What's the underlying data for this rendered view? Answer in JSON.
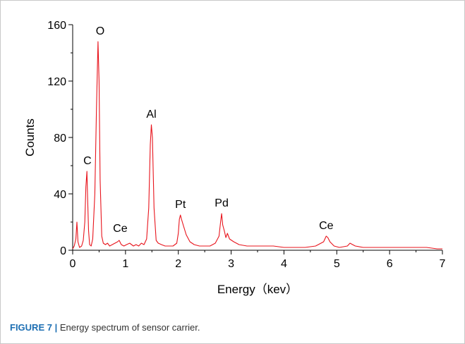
{
  "chart_data": {
    "type": "line",
    "title": "",
    "xlabel": "Energy（kev）",
    "ylabel": "Counts",
    "xlim": [
      0,
      7
    ],
    "ylim": [
      0,
      160
    ],
    "x_ticks": [
      "0",
      "1",
      "2",
      "3",
      "4",
      "5",
      "6",
      "7"
    ],
    "y_ticks": [
      "0",
      "40",
      "80",
      "120",
      "160"
    ],
    "grid": false,
    "legend": "none",
    "line_color": "#e8141c",
    "series": [
      {
        "name": "",
        "x": [
          0.0,
          0.03,
          0.06,
          0.08,
          0.1,
          0.13,
          0.17,
          0.2,
          0.23,
          0.25,
          0.27,
          0.28,
          0.3,
          0.32,
          0.35,
          0.38,
          0.42,
          0.45,
          0.48,
          0.5,
          0.52,
          0.55,
          0.58,
          0.62,
          0.66,
          0.7,
          0.75,
          0.8,
          0.85,
          0.88,
          0.92,
          0.97,
          1.02,
          1.08,
          1.15,
          1.2,
          1.25,
          1.3,
          1.35,
          1.4,
          1.44,
          1.47,
          1.49,
          1.51,
          1.54,
          1.58,
          1.62,
          1.68,
          1.75,
          1.82,
          1.9,
          1.97,
          2.0,
          2.02,
          2.04,
          2.06,
          2.1,
          2.15,
          2.22,
          2.3,
          2.4,
          2.5,
          2.6,
          2.7,
          2.77,
          2.8,
          2.82,
          2.84,
          2.87,
          2.9,
          2.93,
          2.97,
          3.05,
          3.15,
          3.3,
          3.45,
          3.6,
          3.8,
          4.0,
          4.2,
          4.4,
          4.6,
          4.75,
          4.8,
          4.83,
          4.87,
          4.95,
          5.05,
          5.2,
          5.25,
          5.35,
          5.5,
          5.7,
          5.9,
          6.1,
          6.3,
          6.5,
          6.7,
          6.9,
          7.0
        ],
        "values": [
          1,
          3,
          8,
          20,
          6,
          2,
          3,
          7,
          20,
          45,
          56,
          40,
          14,
          4,
          3,
          8,
          40,
          100,
          148,
          120,
          50,
          10,
          5,
          4,
          5,
          3,
          4,
          5,
          6,
          7,
          4,
          3,
          4,
          5,
          3,
          4,
          3,
          5,
          4,
          8,
          30,
          75,
          89,
          80,
          30,
          7,
          5,
          4,
          3,
          3,
          3,
          5,
          12,
          22,
          25,
          22,
          17,
          11,
          6,
          4,
          3,
          3,
          3,
          5,
          10,
          20,
          26,
          18,
          14,
          9,
          12,
          8,
          6,
          4,
          3,
          3,
          3,
          3,
          2,
          2,
          2,
          3,
          6,
          10,
          9,
          6,
          3,
          2,
          3,
          5,
          3,
          2,
          2,
          2,
          2,
          2,
          2,
          2,
          1,
          1
        ]
      }
    ],
    "annotations": [
      {
        "text": "O",
        "x": 0.52,
        "y": 148
      },
      {
        "text": "C",
        "x": 0.28,
        "y": 56
      },
      {
        "text": "Ce",
        "x": 0.9,
        "y": 8
      },
      {
        "text": "Al",
        "x": 1.49,
        "y": 89
      },
      {
        "text": "Pt",
        "x": 2.04,
        "y": 25
      },
      {
        "text": "Pd",
        "x": 2.82,
        "y": 26
      },
      {
        "text": "Ce",
        "x": 4.8,
        "y": 10
      }
    ]
  },
  "caption": {
    "label": "FIGURE 7 |",
    "text": " Energy spectrum of sensor carrier."
  }
}
